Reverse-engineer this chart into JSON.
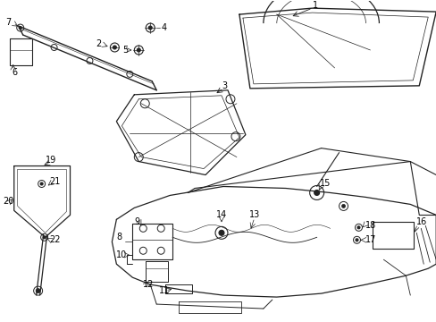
{
  "bg_color": "#ffffff",
  "line_color": "#222222",
  "text_color": "#000000",
  "figsize": [
    4.89,
    3.6
  ],
  "dpi": 100
}
